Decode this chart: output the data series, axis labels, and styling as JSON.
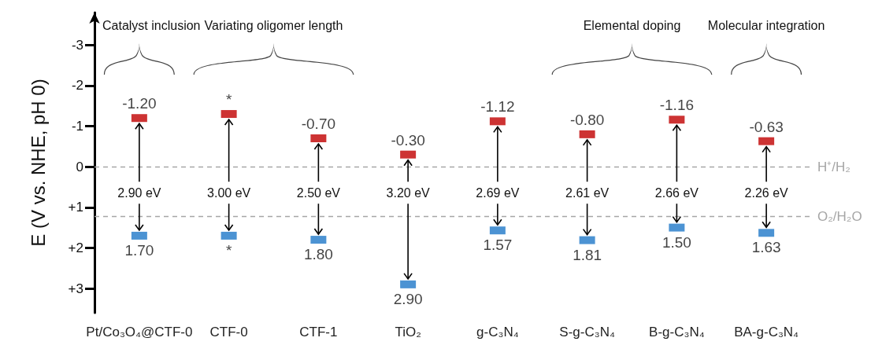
{
  "chart_data": {
    "type": "scatter",
    "ylabel": "E (V vs. NHE, pH 0)",
    "categories": [
      "Pt/Co₃O₄@CTF-0",
      "CTF-0",
      "CTF-1",
      "TiO₂",
      "g-C₃N₄",
      "S-g-C₃N₄",
      "B-g-C₃N₄",
      "BA-g-C₃N₄"
    ],
    "series": [
      {
        "color": "#c00000",
        "values": [
          -1.2,
          -1.3,
          -0.7,
          -0.3,
          -1.12,
          -0.8,
          -1.16,
          -0.63
        ],
        "value_labels": [
          "-1.20",
          "*",
          "-0.70",
          "-0.30",
          "-1.12",
          "-0.80",
          "-1.16",
          "-0.63"
        ]
      },
      {
        "color": "#1f78c8",
        "values": [
          1.7,
          1.7,
          1.8,
          2.9,
          1.57,
          1.81,
          1.5,
          1.63
        ],
        "value_labels": [
          "1.70",
          "*",
          "1.80",
          "2.90",
          "1.57",
          "1.81",
          "1.50",
          "1.63"
        ]
      }
    ],
    "marker": "square",
    "ylim": [
      3.6,
      -3.8
    ],
    "yticks": [
      {
        "value": -3,
        "label": "-3"
      },
      {
        "value": -2,
        "label": "-2"
      },
      {
        "value": -1,
        "label": "-1"
      },
      0,
      {
        "value": 1,
        "label": "+1"
      },
      {
        "value": 2,
        "label": "+2"
      },
      {
        "value": 3,
        "label": "+3"
      }
    ],
    "grid": false,
    "ref_lines": [
      {
        "axis": "y",
        "value": 0,
        "label": "H⁺/H₂",
        "color": "#a6a6a6",
        "line_style": "dashed"
      },
      {
        "axis": "y",
        "value": 1.23,
        "label": "O₂/H₂O",
        "color": "#a6a6a6",
        "line_style": "dashed"
      }
    ],
    "annotations": [
      "Catalyst inclusion",
      "Variating oligomer length",
      "Elemental doping",
      "Molecular integration",
      {
        "text": "2.90 eV",
        "x": "Pt/Co₃O₄@CTF-0",
        "y": -1.2
      },
      {
        "text": "3.00 eV",
        "x": "CTF-0",
        "y": -1.3
      },
      {
        "text": "2.50 eV",
        "x": "CTF-1",
        "y": -0.7
      },
      {
        "text": "3.20 eV",
        "x": "TiO₂",
        "y": -0.3
      },
      {
        "text": "2.69 eV",
        "x": "g-C₃N₄",
        "y": -1.12
      },
      {
        "text": "2.61 eV",
        "x": "S-g-C₃N₄",
        "y": -0.8
      },
      {
        "text": "2.66 eV",
        "x": "B-g-C₃N₄",
        "y": -1.16
      },
      {
        "text": "2.26 eV",
        "x": "BA-g-C₃N₄",
        "y": -0.63
      }
    ]
  }
}
